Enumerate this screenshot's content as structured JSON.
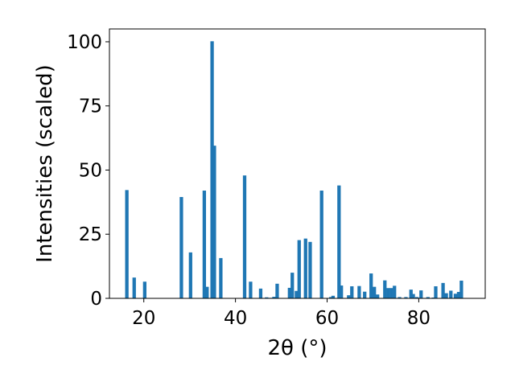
{
  "chart_data": {
    "type": "bar",
    "xlabel": "2θ (°)",
    "ylabel": "Intensities (scaled)",
    "xlim": [
      12.5,
      94.5
    ],
    "ylim": [
      0,
      105
    ],
    "xticks": [
      20,
      40,
      60,
      80
    ],
    "yticks": [
      0,
      25,
      50,
      75,
      100
    ],
    "bar_color": "#1f77b4",
    "bar_width_deg": 0.75,
    "x": [
      16.3,
      17.9,
      20.2,
      28.2,
      30.2,
      33.2,
      33.8,
      34.9,
      35.4,
      36.8,
      42.0,
      43.3,
      45.5,
      46.8,
      47.6,
      48.4,
      49.1,
      51.8,
      52.4,
      53.3,
      53.9,
      55.3,
      56.3,
      58.8,
      60.8,
      61.3,
      62.6,
      63.1,
      64.7,
      65.4,
      67.0,
      68.2,
      69.6,
      70.3,
      71.0,
      72.6,
      73.3,
      74.0,
      74.7,
      75.8,
      77.2,
      78.3,
      78.8,
      79.6,
      80.5,
      82.0,
      83.2,
      83.7,
      85.3,
      86.0,
      87.0,
      88.0,
      88.7,
      89.3
    ],
    "values": [
      42.2,
      8.1,
      6.5,
      39.5,
      17.9,
      42.0,
      4.5,
      100.2,
      59.5,
      15.7,
      47.9,
      6.5,
      3.8,
      0.4,
      0.2,
      0.6,
      5.7,
      4.1,
      10.0,
      2.9,
      22.7,
      23.3,
      22.0,
      42.0,
      0.5,
      1.0,
      44.0,
      5.0,
      1.2,
      4.7,
      4.8,
      2.6,
      9.7,
      4.5,
      1.5,
      7.0,
      4.0,
      4.0,
      4.9,
      0.5,
      0.5,
      3.4,
      1.7,
      0.5,
      3.1,
      0.5,
      0.3,
      4.7,
      6.0,
      2.0,
      3.0,
      1.8,
      2.5,
      6.9
    ]
  }
}
